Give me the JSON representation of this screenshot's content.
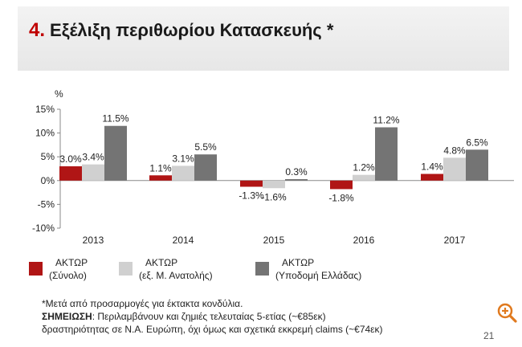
{
  "header": {
    "number": "4.",
    "title": "Εξέλιξη περιθωρίου Κατασκευής *"
  },
  "colors": {
    "accent": "#c00000",
    "bar_total": "#b01515",
    "bar_ex_east": "#d0d0d0",
    "bar_infra": "#747474"
  },
  "chart_data": {
    "type": "bar",
    "ylabel": "%",
    "ylim": [
      -10,
      15
    ],
    "yticks": [
      15,
      10,
      5,
      0,
      -5,
      -10
    ],
    "ytick_labels": [
      "15%",
      "10%",
      "5%",
      "0%",
      "-5%",
      "-10%"
    ],
    "categories": [
      "2013",
      "2014",
      "2015",
      "2016",
      "2017"
    ],
    "series": [
      {
        "name": "ΑΚΤΩΡ (Σύνολο)",
        "values": [
          3.0,
          1.1,
          -1.3,
          -1.8,
          1.4
        ],
        "labels": [
          "3.0%",
          "1.1%",
          "-1.3%",
          "-1.8%",
          "1.4%"
        ],
        "color": "#b01515"
      },
      {
        "name": "ΑΚΤΩΡ (εξ. Μ. Ανατολής)",
        "values": [
          3.4,
          3.1,
          -1.6,
          1.2,
          4.8
        ],
        "labels": [
          "3.4%",
          "3.1%",
          "-1.6%",
          "1.2%",
          "4.8%"
        ],
        "color": "#d0d0d0"
      },
      {
        "name": "ΑΚΤΩΡ (Υποδομή Ελλάδας)",
        "values": [
          11.5,
          5.5,
          0.3,
          11.2,
          6.5
        ],
        "labels": [
          "11.5%",
          "5.5%",
          "0.3%",
          "11.2%",
          "6.5%"
        ],
        "color": "#747474"
      }
    ],
    "legend_position": "bottom-left",
    "grid": false
  },
  "legend": [
    {
      "line1": "ΑΚΤΩΡ",
      "line2": "(Σύνολο)"
    },
    {
      "line1": "ΑΚΤΩΡ",
      "line2": "(εξ. Μ. Ανατολής)"
    },
    {
      "line1": "ΑΚΤΩΡ",
      "line2": "(Υποδομή Ελλάδας)"
    }
  ],
  "notes": {
    "line1": "*Μετά από προσαρμογές για έκτακτα κονδύλια.",
    "line2_bold": "ΣΗΜΕΙΩΣΗ",
    "line2_rest": ": Περιλαμβάνουν και ζημιές τελευταίας 5-ετίας (~€85εκ)",
    "line3": "δραστηριότητας σε Ν.Α. Ευρώπη, όχι όμως και σχετικά εκκρεμή claims (~€74εκ)"
  },
  "page_number": "21",
  "zoom_icon": "zoom-in-icon"
}
